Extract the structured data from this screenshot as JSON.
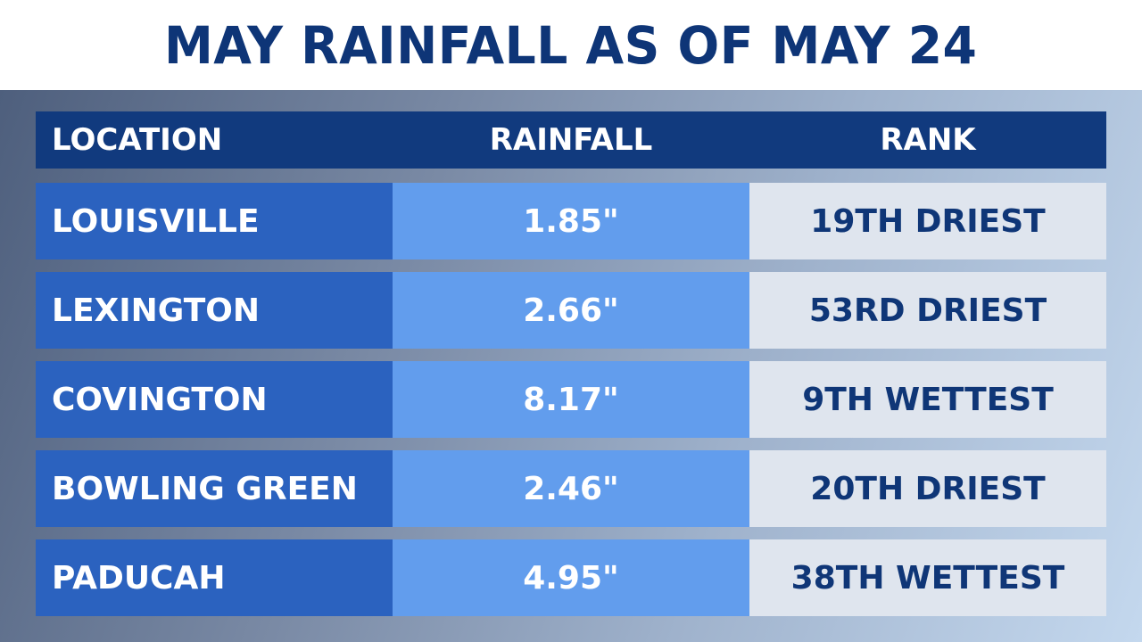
{
  "title": "MAY RAINFALL AS OF MAY 24",
  "colors": {
    "title": "#0e3577",
    "header_bg": "#113a7e",
    "location_bg": "#2b62bf",
    "rainfall_bg": "#629ded",
    "rank_bg": "#dfe5ee",
    "rank_text": "#0f3677"
  },
  "chart_data": {
    "type": "table",
    "title": "MAY RAINFALL AS OF MAY 24",
    "columns": [
      "LOCATION",
      "RAINFALL",
      "RANK"
    ],
    "rows": [
      {
        "location": "LOUISVILLE",
        "rainfall": "1.85\"",
        "rank": "19TH DRIEST"
      },
      {
        "location": "LEXINGTON",
        "rainfall": "2.66\"",
        "rank": "53RD DRIEST"
      },
      {
        "location": "COVINGTON",
        "rainfall": "8.17\"",
        "rank": "9TH WETTEST"
      },
      {
        "location": "BOWLING GREEN",
        "rainfall": "2.46\"",
        "rank": "20TH DRIEST"
      },
      {
        "location": "PADUCAH",
        "rainfall": "4.95\"",
        "rank": "38TH WETTEST"
      }
    ]
  }
}
